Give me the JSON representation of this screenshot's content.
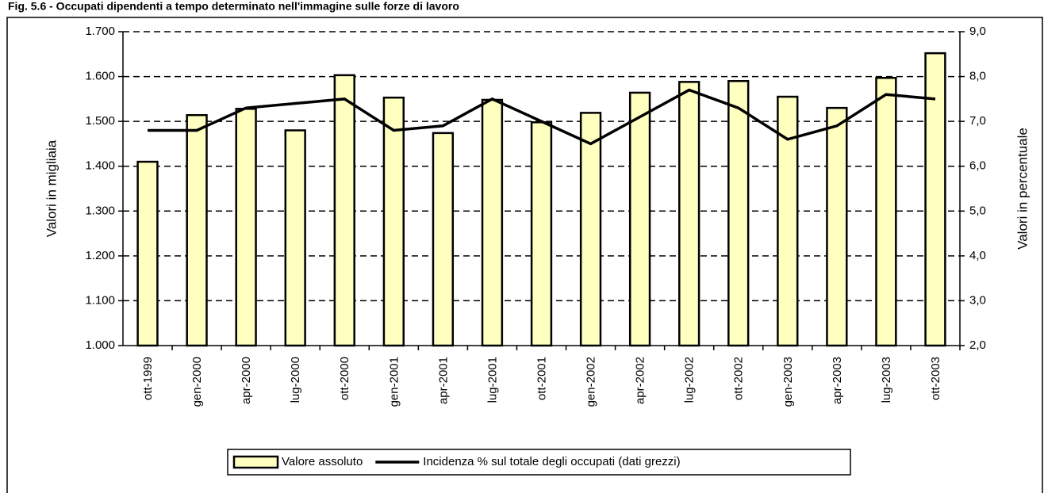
{
  "chart_data": {
    "type": "bar-line",
    "title": "Fig. 5.6 - Occupati dipendenti a tempo determinato nell'immagine sulle forze di lavoro",
    "y_label": "Valori in migliaia",
    "y2_label": "Valori in percentuale",
    "categories": [
      "ott-1999",
      "gen-2000",
      "apr-2000",
      "lug-2000",
      "ott-2000",
      "gen-2001",
      "apr-2001",
      "lug-2001",
      "ott-2001",
      "gen-2002",
      "apr-2002",
      "lug-2002",
      "ott-2002",
      "gen-2003",
      "apr-2003",
      "lug-2003",
      "ott-2003"
    ],
    "series": [
      {
        "name": "Valore assoluto",
        "type": "bar",
        "color": "#ffffc0",
        "values": [
          1410,
          1514,
          1528,
          1480,
          1603,
          1553,
          1474,
          1548,
          1498,
          1519,
          1564,
          1588,
          1590,
          1555,
          1530,
          1597,
          1652
        ]
      },
      {
        "name": "Incidenza % sul totale degli occupati (dati grezzi)",
        "type": "line",
        "axis": "y2",
        "color": "#000000",
        "values": [
          6.8,
          6.8,
          7.3,
          7.4,
          7.5,
          6.8,
          6.9,
          7.5,
          7.0,
          6.5,
          7.1,
          7.7,
          7.3,
          6.6,
          6.9,
          7.6,
          7.5
        ]
      }
    ],
    "ylim": [
      1000,
      1700
    ],
    "yticks": [
      {
        "value": 1000,
        "label": "1.000"
      },
      {
        "value": 1100,
        "label": "1.100"
      },
      {
        "value": 1200,
        "label": "1.200"
      },
      {
        "value": 1300,
        "label": "1.300"
      },
      {
        "value": 1400,
        "label": "1.400"
      },
      {
        "value": 1500,
        "label": "1.500"
      },
      {
        "value": 1600,
        "label": "1.600"
      },
      {
        "value": 1700,
        "label": "1.700"
      }
    ],
    "y2lim": [
      2,
      9
    ],
    "y2ticks": [
      {
        "value": 2,
        "label": "2,0"
      },
      {
        "value": 3,
        "label": "3,0"
      },
      {
        "value": 4,
        "label": "4,0"
      },
      {
        "value": 5,
        "label": "5,0"
      },
      {
        "value": 6,
        "label": "6,0"
      },
      {
        "value": 7,
        "label": "7,0"
      },
      {
        "value": 8,
        "label": "8,0"
      },
      {
        "value": 9,
        "label": "9,0"
      }
    ],
    "grid": true,
    "legend": "bottom"
  }
}
